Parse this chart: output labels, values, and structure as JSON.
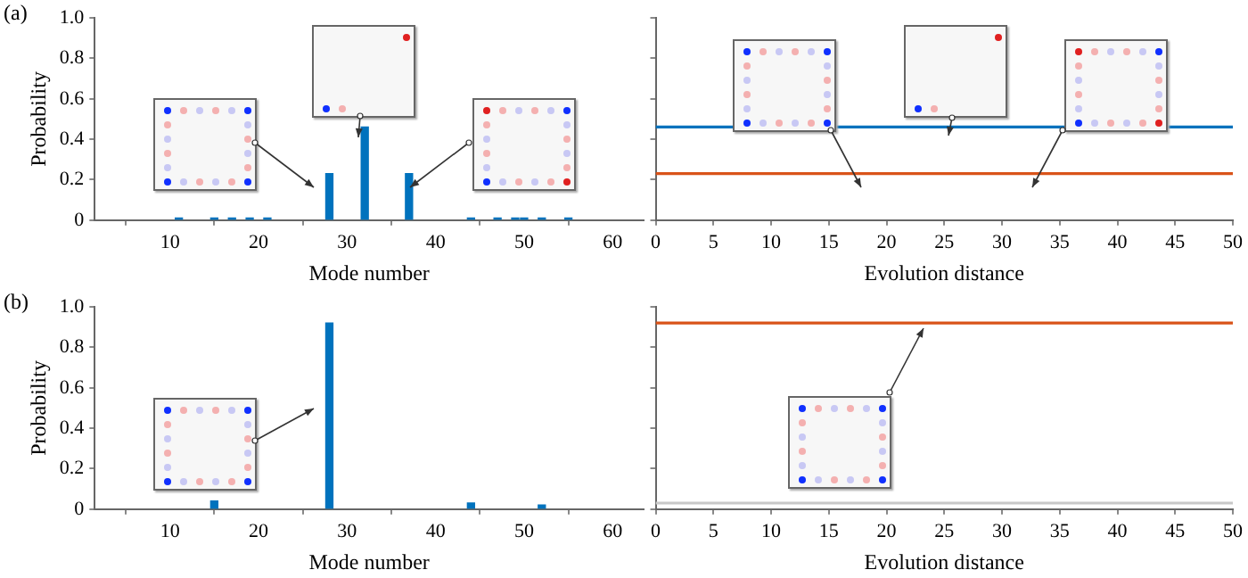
{
  "chart_data": [
    {
      "type": "bar",
      "title": "(a)",
      "xlabel": "Mode number",
      "ylabel": "Probability",
      "color": "#0072bd",
      "x": [
        11,
        15,
        17,
        19,
        21,
        28,
        32,
        37,
        44,
        47,
        49,
        50,
        52,
        55
      ],
      "values": [
        0.01,
        0.01,
        0.01,
        0.01,
        0.01,
        0.23,
        0.46,
        0.23,
        0.01,
        0.01,
        0.01,
        0.01,
        0.01,
        0.01
      ],
      "xlim": [
        1.5,
        63.5
      ],
      "xticks": [
        10,
        20,
        30,
        40,
        50,
        60
      ],
      "ylim": [
        0,
        1
      ],
      "yticks": [
        0,
        0.2,
        0.4,
        0.6,
        0.8,
        {
          "value": 1,
          "label": "1.0"
        }
      ]
    },
    {
      "type": "line",
      "xlabel": "Evolution distance",
      "x": [
        0,
        50
      ],
      "series": [
        {
          "color": "#0072bd",
          "values": [
            0.46,
            0.46
          ]
        },
        {
          "color": "#d95319",
          "values": [
            0.23,
            0.23
          ]
        }
      ],
      "xlim": [
        0,
        50
      ],
      "xticks": [
        0,
        5,
        10,
        15,
        20,
        25,
        30,
        35,
        40,
        45,
        50
      ],
      "ylim": [
        0,
        1
      ],
      "yticks": [
        {
          "value": 0,
          "label": null
        },
        {
          "value": 0.2,
          "label": null
        },
        {
          "value": 0.4,
          "label": null
        },
        {
          "value": 0.6,
          "label": null
        },
        {
          "value": 0.8,
          "label": null
        },
        {
          "value": 1,
          "label": null
        }
      ],
      "tick_labels": "x"
    },
    {
      "type": "bar",
      "title": "(b)",
      "xlabel": "Mode number",
      "ylabel": "Probability",
      "color": "#0072bd",
      "x": [
        15,
        28,
        44,
        52
      ],
      "values": [
        0.04,
        0.92,
        0.03,
        0.02
      ],
      "xlim": [
        1.5,
        63.5
      ],
      "xticks": [
        10,
        20,
        30,
        40,
        50,
        60
      ],
      "ylim": [
        0,
        1
      ],
      "yticks": [
        0,
        0.2,
        0.4,
        0.6,
        0.8,
        {
          "value": 1,
          "label": "1.0"
        }
      ]
    },
    {
      "type": "line",
      "xlabel": "Evolution distance",
      "x": [
        0,
        50
      ],
      "series": [
        {
          "color": "#d95319",
          "values": [
            0.92,
            0.92
          ]
        },
        {
          "color": "#c8c8c8",
          "values": [
            0.03,
            0.03
          ]
        }
      ],
      "xlim": [
        0,
        50
      ],
      "xticks": [
        0,
        5,
        10,
        15,
        20,
        25,
        30,
        35,
        40,
        45,
        50
      ],
      "ylim": [
        0,
        1
      ],
      "yticks": [
        {
          "value": 0,
          "label": null
        },
        {
          "value": 0.2,
          "label": null
        },
        {
          "value": 0.4,
          "label": null
        },
        {
          "value": 0.6,
          "label": null
        },
        {
          "value": 0.8,
          "label": null
        },
        {
          "value": 1,
          "label": null
        }
      ],
      "tick_labels": "x"
    }
  ]
}
